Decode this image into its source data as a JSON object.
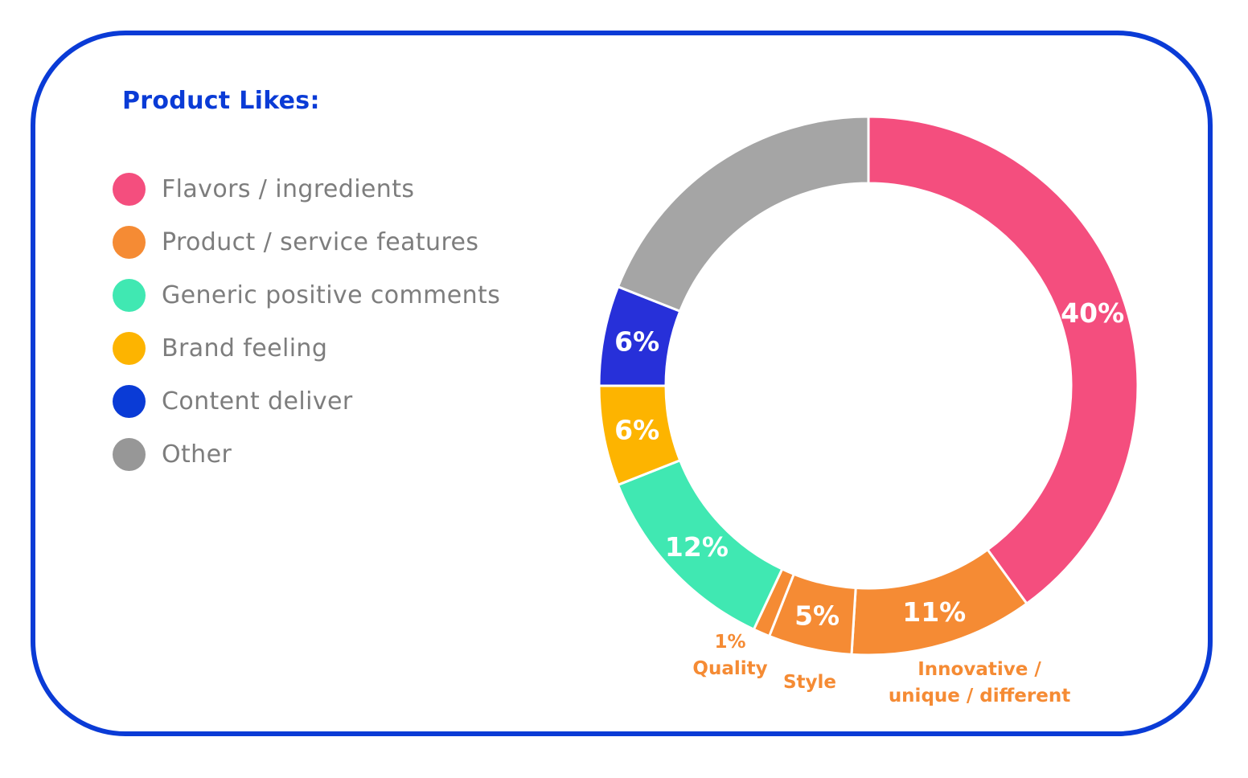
{
  "chart_data": {
    "type": "pie",
    "variant": "donut",
    "title": "Product Likes:",
    "legend": [
      {
        "label": "Flavors / ingredients",
        "color": "#f44e7e"
      },
      {
        "label": "Product / service features",
        "color": "#f58b34"
      },
      {
        "label": "Generic positive comments",
        "color": "#40e8b2"
      },
      {
        "label": "Brand feeling",
        "color": "#fdb400"
      },
      {
        "label": "Content deliver",
        "color": "#0a3bd6"
      },
      {
        "label": "Other",
        "color": "#979797"
      }
    ],
    "slices": [
      {
        "category": "Flavors / ingredients",
        "value": 40,
        "label": "40%",
        "color": "#f44e7e"
      },
      {
        "category": "Product / service features",
        "subcategory": "Innovative / unique / different",
        "value": 11,
        "label": "11%",
        "color": "#f58b34"
      },
      {
        "category": "Product / service features",
        "subcategory": "Style",
        "value": 5,
        "label": "5%",
        "color": "#f58b34"
      },
      {
        "category": "Product / service features",
        "subcategory": "Quality",
        "value": 1,
        "label": "1%",
        "color": "#f58b34"
      },
      {
        "category": "Generic positive comments",
        "value": 12,
        "label": "12%",
        "color": "#40e8b2"
      },
      {
        "category": "Brand feeling",
        "value": 6,
        "label": "6%",
        "color": "#fdb400"
      },
      {
        "category": "Content deliver",
        "value": 6,
        "label": "6%",
        "color": "#2730d9"
      },
      {
        "category": "Other",
        "value": 19,
        "label": "",
        "color": "#a5a5a5"
      }
    ],
    "external_labels": [
      {
        "lines": [
          "1%",
          "Quality"
        ]
      },
      {
        "lines": [
          "Style"
        ]
      },
      {
        "lines": [
          "Innovative /",
          "unique / different"
        ]
      }
    ]
  },
  "colors": {
    "frame": "#0a3bd6",
    "legend_text": "#7d7d7d"
  }
}
